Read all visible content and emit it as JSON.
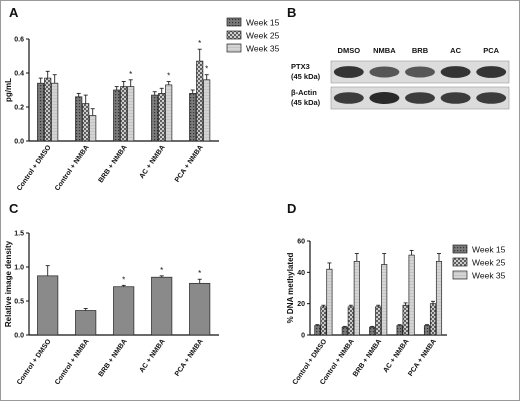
{
  "figure": {
    "panels": [
      {
        "letter": "A"
      },
      {
        "letter": "B"
      },
      {
        "letter": "C"
      },
      {
        "letter": "D"
      }
    ]
  },
  "colors": {
    "bar_week15": "#7a7a7a",
    "bar_week25": "#eaeaea",
    "bar_week35": "#d4d4d4",
    "bar_single": "#8a8a8a",
    "axis": "#111111",
    "blot_background": "#dcdcdc",
    "blot_band": "#2a2a2a"
  },
  "chart_data": [
    {
      "panel": "A",
      "type": "bar",
      "ylabel": "pg/mL",
      "ylim": [
        0,
        0.6
      ],
      "yticks": [
        "0.0",
        "0.2",
        "0.4",
        "0.6"
      ],
      "categories": [
        "Control + DMSO",
        "Control + NMBA",
        "BRB + NMBA",
        "AC + NMBA",
        "PCA + NMBA"
      ],
      "series": [
        {
          "name": "Week 15",
          "values": [
            0.34,
            0.26,
            0.3,
            0.27,
            0.28
          ],
          "errors": [
            0.03,
            0.02,
            0.02,
            0.02,
            0.02
          ]
        },
        {
          "name": "Week 25",
          "values": [
            0.37,
            0.22,
            0.32,
            0.28,
            0.47
          ],
          "errors": [
            0.04,
            0.05,
            0.03,
            0.03,
            0.07
          ]
        },
        {
          "name": "Week 35",
          "values": [
            0.34,
            0.15,
            0.32,
            0.33,
            0.36
          ],
          "errors": [
            0.05,
            0.04,
            0.04,
            0.02,
            0.03
          ]
        }
      ],
      "significance": [
        {
          "category": 2,
          "series": 2,
          "label": "*"
        },
        {
          "category": 3,
          "series": 2,
          "label": "*"
        },
        {
          "category": 4,
          "series": 1,
          "label": "*"
        },
        {
          "category": 4,
          "series": 2,
          "label": "*"
        }
      ],
      "legend": "top-right",
      "grid": false
    },
    {
      "panel": "C",
      "type": "bar",
      "ylabel": "Relative image density",
      "ylim": [
        0,
        1.5
      ],
      "yticks": [
        "0.0",
        "0.5",
        "1.0",
        "1.5"
      ],
      "categories": [
        "Control + DMSO",
        "Control + NMBA",
        "BRB + NMBA",
        "AC + NMBA",
        "PCA + NMBA"
      ],
      "values": [
        0.87,
        0.36,
        0.71,
        0.85,
        0.76
      ],
      "errors": [
        0.15,
        0.03,
        0.02,
        0.02,
        0.06
      ],
      "significance": [
        {
          "category": 2,
          "label": "*"
        },
        {
          "category": 3,
          "label": "*"
        },
        {
          "category": 4,
          "label": "*"
        }
      ],
      "grid": false
    },
    {
      "panel": "D",
      "type": "bar",
      "ylabel": "% DNA methylated",
      "ylim": [
        0,
        60
      ],
      "yticks": [
        "0",
        "20",
        "40",
        "60"
      ],
      "categories": [
        "Control + DMSO",
        "Control + NMBA",
        "BRB + NMBA",
        "AC + NMBA",
        "PCA + NMBA"
      ],
      "series": [
        {
          "name": "Week 15",
          "values": [
            6,
            5,
            5,
            6,
            6
          ],
          "errors": [
            0.6,
            0.5,
            0.5,
            0.6,
            0.6
          ]
        },
        {
          "name": "Week 25",
          "values": [
            18,
            18,
            18,
            19,
            20
          ],
          "errors": [
            1,
            1,
            1,
            1.5,
            1.5
          ]
        },
        {
          "name": "Week 35",
          "values": [
            42,
            47,
            45,
            51,
            47
          ],
          "errors": [
            4,
            5,
            7,
            3,
            5
          ]
        }
      ],
      "legend": "top-right",
      "grid": false
    }
  ],
  "blot": {
    "lanes": [
      "DMSO",
      "NMBA",
      "BRB",
      "AC",
      "PCA"
    ],
    "rows": [
      {
        "label_line1": "PTX3",
        "label_line2": "(45 kDa)",
        "band_intensity": [
          0.95,
          0.75,
          0.75,
          0.95,
          0.95
        ]
      },
      {
        "label_line1": "β-Actin",
        "label_line2": "(45 kDa)",
        "band_intensity": [
          0.9,
          1.0,
          0.9,
          0.9,
          0.9
        ]
      }
    ]
  }
}
